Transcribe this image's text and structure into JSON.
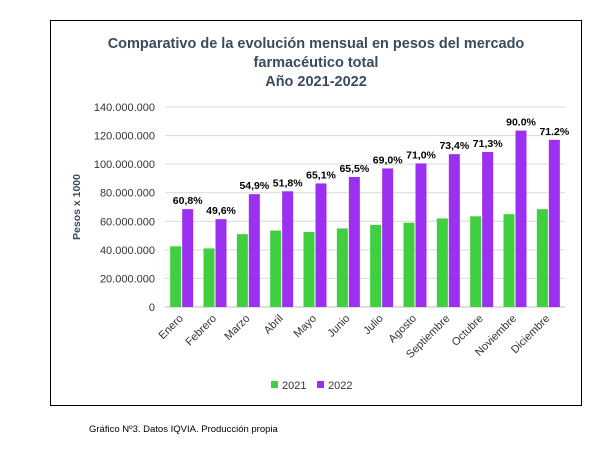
{
  "chart_data": {
    "type": "bar",
    "title_lines": [
      "Comparativo de la evolución mensual en pesos del mercado",
      "farmacéutico total",
      "Año 2021-2022"
    ],
    "ylabel": "Pesos x 1000",
    "xlabel": "",
    "ylim": [
      0,
      140000000
    ],
    "yticks": [
      0,
      20000000,
      40000000,
      60000000,
      80000000,
      100000000,
      120000000,
      140000000
    ],
    "ytick_labels": [
      "0",
      "20.000.000",
      "40.000.000",
      "60.000.000",
      "80.000.000",
      "100.000.000",
      "120.000.000",
      "140.000.000"
    ],
    "categories": [
      "Enero",
      "Febrero",
      "Marzo",
      "Abril",
      "Mayo",
      "Junio",
      "Julio",
      "Agosto",
      "Septiembre",
      "Octubre",
      "Noviembre",
      "Diciembre"
    ],
    "series": [
      {
        "name": "2021",
        "color": "#3fcf3f",
        "values": [
          42500000,
          41000000,
          51000000,
          53500000,
          52500000,
          55000000,
          57500000,
          59000000,
          62000000,
          63500000,
          65000000,
          68500000
        ]
      },
      {
        "name": "2022",
        "color": "#9b30f0",
        "values": [
          68500000,
          61500000,
          79000000,
          81000000,
          86500000,
          91000000,
          97000000,
          100500000,
          107000000,
          108500000,
          123500000,
          117000000
        ]
      }
    ],
    "data_labels": [
      "60,8%",
      "49,6%",
      "54,9%",
      "51,8%",
      "65,1%",
      "65,5%",
      "69,0%",
      "71,0%",
      "73,4%",
      "71,3%",
      "90.0%",
      "71.2%"
    ],
    "legend_position": "bottom",
    "grid": true
  },
  "caption": "Gráfico Nº3. Datos IQVIA. Producción propia"
}
